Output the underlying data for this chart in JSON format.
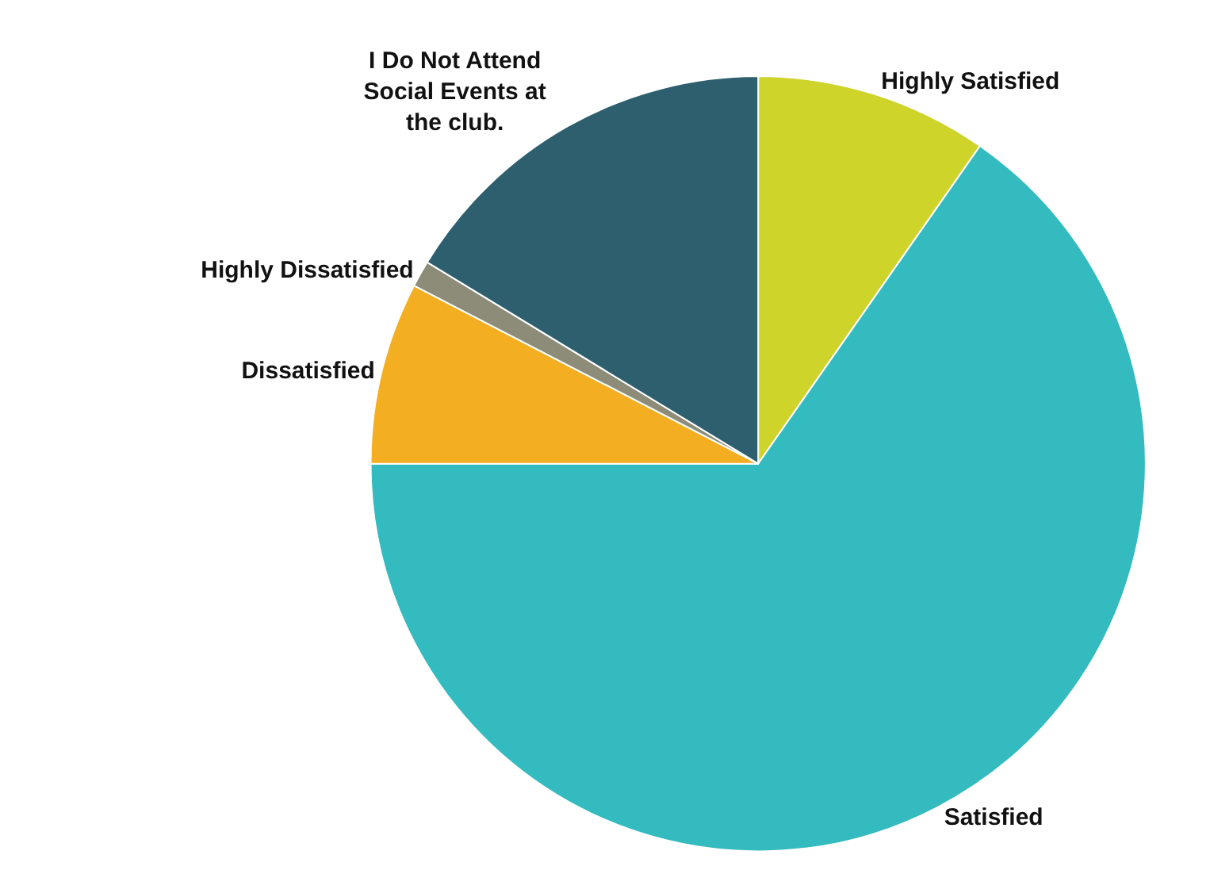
{
  "chart_data": {
    "type": "pie",
    "categories": [
      "Highly Satisfied",
      "Satisfied",
      "Dissatisfied",
      "Highly Dissatisfied",
      "I Do Not Attend Social Events at the club."
    ],
    "values": [
      9.7,
      65.3,
      7.6,
      1.1,
      16.3
    ],
    "colors": [
      "#cfd42a",
      "#33bbbf",
      "#f4ae22",
      "#8c8c78",
      "#2e5f6e"
    ],
    "legend": false
  }
}
